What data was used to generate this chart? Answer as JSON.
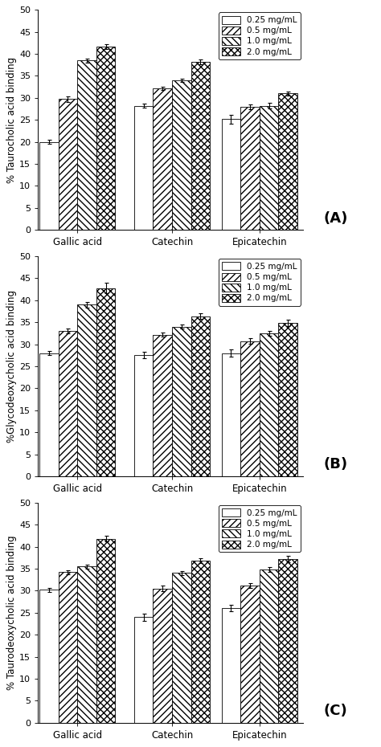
{
  "panels": [
    {
      "label": "(A)",
      "ylabel": "% Taurocholic acid binding",
      "groups": [
        "Gallic acid",
        "Catechin",
        "Epicatechin"
      ],
      "values": [
        [
          20.0,
          29.7,
          38.5,
          41.7
        ],
        [
          28.2,
          32.2,
          34.0,
          38.2
        ],
        [
          25.2,
          28.0,
          28.2,
          31.0
        ]
      ],
      "errors": [
        [
          0.5,
          0.6,
          0.5,
          0.5
        ],
        [
          0.5,
          0.4,
          0.4,
          0.5
        ],
        [
          1.0,
          0.6,
          0.6,
          0.5
        ]
      ]
    },
    {
      "label": "(B)",
      "ylabel": "%Glycodeoxycholic acid binding",
      "groups": [
        "Gallic acid",
        "Catechin",
        "Epicatechin"
      ],
      "values": [
        [
          28.0,
          33.0,
          39.0,
          42.8
        ],
        [
          27.6,
          32.2,
          34.0,
          36.4
        ],
        [
          28.0,
          30.7,
          32.5,
          34.8
        ]
      ],
      "errors": [
        [
          0.5,
          0.5,
          0.6,
          1.2
        ],
        [
          0.7,
          0.5,
          0.5,
          0.6
        ],
        [
          0.8,
          0.6,
          0.5,
          0.7
        ]
      ]
    },
    {
      "label": "(C)",
      "ylabel": "% Taurodeoxycholic acid binding",
      "groups": [
        "Gallic acid",
        "Catechin",
        "Epicatechin"
      ],
      "values": [
        [
          30.2,
          34.2,
          35.5,
          41.8
        ],
        [
          24.0,
          30.5,
          34.0,
          36.8
        ],
        [
          26.0,
          31.2,
          34.8,
          37.2
        ]
      ],
      "errors": [
        [
          0.5,
          0.5,
          0.5,
          0.6
        ],
        [
          0.8,
          0.7,
          0.5,
          0.6
        ],
        [
          0.7,
          0.5,
          0.6,
          0.7
        ]
      ]
    }
  ],
  "legend_labels": [
    "0.25 mg/mL",
    "0.5 mg/mL",
    "1.0 mg/mL",
    "2.0 mg/mL"
  ],
  "ylim": [
    0,
    50
  ],
  "yticks": [
    0,
    5,
    10,
    15,
    20,
    25,
    30,
    35,
    40,
    45,
    50
  ],
  "bar_width": 0.13,
  "background_color": "#ffffff",
  "label_fontsize": 8.5,
  "tick_fontsize": 8,
  "legend_fontsize": 7.5,
  "panel_label_fontsize": 13
}
